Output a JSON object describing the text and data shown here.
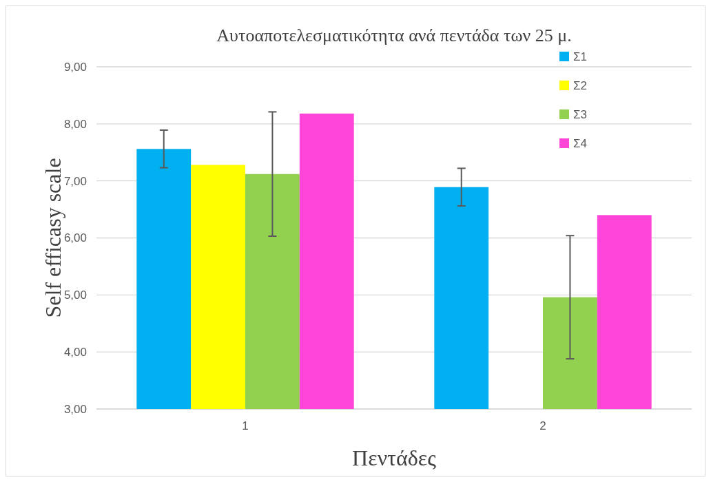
{
  "chart_data": {
    "type": "bar",
    "title": "Αυτοαποτελεσματικότητα ανά πεντάδα των 25 μ.",
    "xlabel": "Πεντάδες",
    "ylabel": "Self efficasy scale",
    "categories": [
      "1",
      "2"
    ],
    "series": [
      {
        "name": "Σ1",
        "color": "#00b0f0",
        "values": [
          7.56,
          6.89
        ],
        "errors": [
          0.33,
          0.33
        ]
      },
      {
        "name": "Σ2",
        "color": "#ffff00",
        "values": [
          7.28,
          null
        ]
      },
      {
        "name": "Σ3",
        "color": "#92d050",
        "values": [
          7.12,
          4.96
        ],
        "errors": [
          1.09,
          1.08
        ]
      },
      {
        "name": "Σ4",
        "color": "#ff45d7",
        "values": [
          8.18,
          6.4
        ]
      }
    ],
    "ylim": [
      3,
      9
    ],
    "yticks": [
      {
        "value": 3,
        "label": "3,00"
      },
      {
        "value": 4,
        "label": "4,00"
      },
      {
        "value": 5,
        "label": "5,00"
      },
      {
        "value": 6,
        "label": "6,00"
      },
      {
        "value": 7,
        "label": "7,00"
      },
      {
        "value": 8,
        "label": "8,00"
      },
      {
        "value": 9,
        "label": "9,00"
      }
    ],
    "grid": "y",
    "legend": "top right"
  }
}
